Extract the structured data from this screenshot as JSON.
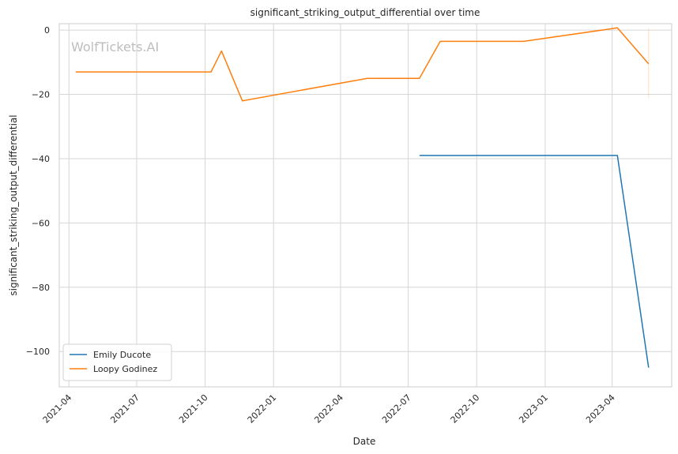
{
  "chart_data": {
    "type": "line",
    "title": "significant_striking_output_differential over time",
    "xlabel": "Date",
    "ylabel": "significant_striking_output_differential",
    "watermark": "WolfTickets.AI",
    "x_ticks": [
      "2021-04",
      "2021-07",
      "2021-10",
      "2022-01",
      "2022-04",
      "2022-07",
      "2022-10",
      "2023-01",
      "2023-04"
    ],
    "y_ticks": [
      0,
      -20,
      -40,
      -60,
      -80,
      -100
    ],
    "y_tick_labels": [
      "0",
      "−20",
      "−40",
      "−60",
      "−80",
      "−100"
    ],
    "xlim": [
      "2021-03-19",
      "2023-06-20"
    ],
    "ylim": [
      -111,
      2
    ],
    "grid": true,
    "legend_position": "lower-left",
    "series": [
      {
        "name": "Emily Ducote",
        "color": "#1f77b4",
        "points": [
          {
            "x": "2022-07-16",
            "y": -39
          },
          {
            "x": "2023-04-08",
            "y": -39
          },
          {
            "x": "2023-05-20",
            "y": -105
          }
        ]
      },
      {
        "name": "Loopy Godinez",
        "color": "#ff7f0e",
        "points": [
          {
            "x": "2021-04-10",
            "y": -13
          },
          {
            "x": "2021-10-09",
            "y": -13
          },
          {
            "x": "2021-10-23",
            "y": -6.5
          },
          {
            "x": "2021-11-20",
            "y": -22
          },
          {
            "x": "2022-05-07",
            "y": -15
          },
          {
            "x": "2022-07-16",
            "y": -15
          },
          {
            "x": "2022-08-13",
            "y": -3.5
          },
          {
            "x": "2022-12-03",
            "y": -3.5
          },
          {
            "x": "2023-04-08",
            "y": 0.7
          },
          {
            "x": "2023-05-20",
            "y": -10.5
          }
        ]
      }
    ],
    "annotations": [
      {
        "x": "2023-05-20",
        "y_range": [
          -21,
          0.5
        ],
        "color": "#ff7f0e",
        "style": "faint-vertical-band"
      }
    ]
  }
}
